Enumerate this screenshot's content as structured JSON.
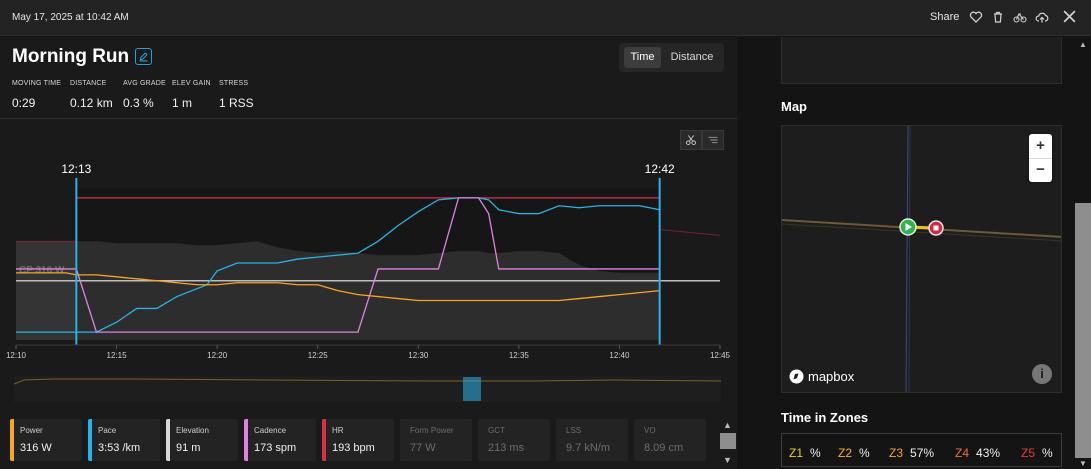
{
  "header": {
    "date": "May 17, 2025 at 10:42 AM",
    "share_label": "Share",
    "icons": [
      "heart-icon",
      "trash-icon",
      "bike-icon",
      "cloud-upload-icon",
      "close-icon"
    ]
  },
  "activity": {
    "title": "Morning Run",
    "toggle": {
      "time": "Time",
      "distance": "Distance",
      "selected": "Time"
    },
    "stats": [
      {
        "label": "MOVING TIME",
        "value": "0:29"
      },
      {
        "label": "DISTANCE",
        "value": "0.12 km"
      },
      {
        "label": "AVG GRADE",
        "value": "0.3 %"
      },
      {
        "label": "ELEV GAIN",
        "value": "1 m"
      },
      {
        "label": "STRESS",
        "value": "1 RSS"
      }
    ]
  },
  "chart_data": {
    "type": "line",
    "x_ticks": [
      "12:10",
      "12:15",
      "12:20",
      "12:25",
      "12:30",
      "12:35",
      "12:40",
      "12:45"
    ],
    "selection_start": "12:13",
    "selection_end": "12:42",
    "reference_line_label": "CP 316 W",
    "x": [
      10,
      12.5,
      13,
      14,
      15,
      16,
      17,
      18,
      19,
      19.5,
      20,
      21,
      22,
      23,
      24,
      25,
      26,
      27,
      28,
      29,
      30,
      31,
      32,
      32.5,
      33,
      33.5,
      34,
      35,
      36,
      37,
      38,
      39,
      40,
      41,
      42
    ],
    "series": [
      {
        "name": "Pace",
        "color": "#2ab3e6",
        "values": [
          0.74,
          0.74,
          0.74,
          0.74,
          0.79,
          0.86,
          0.86,
          0.92,
          0.96,
          0.98,
          1.05,
          1.09,
          1.09,
          1.09,
          1.11,
          1.12,
          1.13,
          1.14,
          1.2,
          1.28,
          1.35,
          1.41,
          1.42,
          1.42,
          1.42,
          1.41,
          1.36,
          1.34,
          1.34,
          1.38,
          1.37,
          1.38,
          1.38,
          1.38,
          1.36
        ]
      },
      {
        "name": "Cadence",
        "color": "#e083e0",
        "values": [
          1.06,
          1.06,
          1.06,
          0.74,
          0.74,
          0.74,
          0.74,
          0.74,
          0.74,
          0.74,
          0.74,
          0.74,
          0.74,
          0.74,
          0.74,
          0.74,
          0.74,
          0.74,
          1.06,
          1.06,
          1.06,
          1.06,
          1.42,
          1.42,
          1.42,
          1.34,
          1.06,
          1.06,
          1.06,
          1.06,
          1.06,
          1.06,
          1.06,
          1.06,
          1.06
        ]
      },
      {
        "name": "Power",
        "color": "#f5a623",
        "values": [
          1.04,
          1.04,
          1.03,
          1.03,
          1.02,
          1.01,
          1.0,
          0.99,
          0.98,
          0.98,
          0.98,
          0.99,
          0.99,
          0.99,
          0.98,
          0.98,
          0.95,
          0.93,
          0.92,
          0.91,
          0.9,
          0.9,
          0.9,
          0.9,
          0.9,
          0.9,
          0.9,
          0.9,
          0.9,
          0.9,
          0.91,
          0.92,
          0.93,
          0.94,
          0.95
        ]
      },
      {
        "name": "Elevation",
        "color": "#4a4a4a",
        "values": [
          1.2,
          1.2,
          1.2,
          1.2,
          1.19,
          1.19,
          1.19,
          1.19,
          1.18,
          1.18,
          1.18,
          1.19,
          1.2,
          1.17,
          1.15,
          1.14,
          1.15,
          1.14,
          1.13,
          1.13,
          1.13,
          1.14,
          1.15,
          1.15,
          1.15,
          1.14,
          1.14,
          1.15,
          1.15,
          1.14,
          1.08,
          1.05,
          1.04,
          1.04,
          1.04
        ]
      }
    ],
    "hr_value": 1.42,
    "cp_value": 1.0,
    "y_range": [
      0.7,
      1.47
    ]
  },
  "metrics": [
    {
      "label": "Power",
      "value": "316 W",
      "color": "#f5a623",
      "active": true
    },
    {
      "label": "Pace",
      "value": "3:53 /km",
      "color": "#2ab3e6",
      "active": true
    },
    {
      "label": "Elevation",
      "value": "91 m",
      "color": "#d8d8d8",
      "active": true
    },
    {
      "label": "Cadence",
      "value": "173 spm",
      "color": "#e083e0",
      "active": true
    },
    {
      "label": "HR",
      "value": "193 bpm",
      "color": "#d9304a",
      "active": true
    },
    {
      "label": "Form Power",
      "value": "77 W",
      "color": "",
      "active": false
    },
    {
      "label": "GCT",
      "value": "213 ms",
      "color": "",
      "active": false
    },
    {
      "label": "LSS",
      "value": "9.7 kN/m",
      "color": "",
      "active": false
    },
    {
      "label": "VO",
      "value": "8.09 cm",
      "color": "",
      "active": false
    }
  ],
  "map": {
    "title": "Map",
    "zoom_in": "+",
    "zoom_out": "−",
    "attribution": "mapbox"
  },
  "zones": {
    "title": "Time in Zones",
    "items": [
      {
        "zone": "Z1",
        "pct": "%",
        "color": "#e8d21d"
      },
      {
        "zone": "Z2",
        "pct": "%",
        "color": "#f5b323"
      },
      {
        "zone": "Z3",
        "pct": "57%",
        "color": "#f5a623"
      },
      {
        "zone": "Z4",
        "pct": "43%",
        "color": "#f0713b"
      },
      {
        "zone": "Z5",
        "pct": "%",
        "color": "#e83b3b"
      }
    ]
  }
}
